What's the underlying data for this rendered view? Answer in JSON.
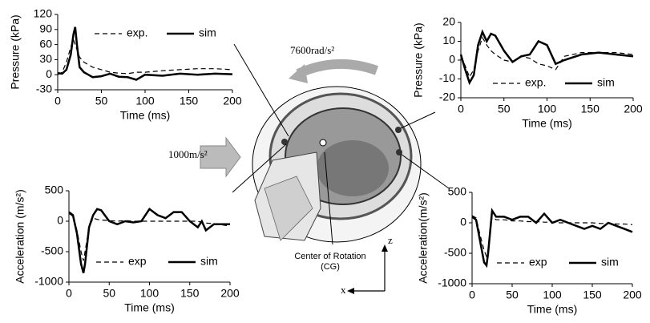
{
  "chart_data": [
    {
      "type": "line",
      "x_label": "Time (ms)",
      "y_label": "Pressure (kPa)",
      "xlim": [
        0,
        200
      ],
      "xticks": [
        0,
        50,
        100,
        150,
        200
      ],
      "ylim": [
        -30,
        120
      ],
      "yticks": [
        -30,
        0,
        30,
        60,
        90,
        120
      ],
      "legend": "top",
      "x": [
        0,
        5,
        10,
        15,
        18,
        20,
        22,
        25,
        30,
        35,
        40,
        50,
        60,
        70,
        80,
        90,
        100,
        120,
        140,
        160,
        180,
        200
      ],
      "series": [
        {
          "name": "exp.",
          "color": "#000000",
          "line_style": "dashed",
          "values": [
            0,
            5,
            25,
            55,
            70,
            60,
            50,
            35,
            25,
            20,
            15,
            10,
            5,
            3,
            2,
            5,
            5,
            8,
            10,
            12,
            12,
            10
          ]
        },
        {
          "name": "sim",
          "color": "#000000",
          "line_style": "solid",
          "values": [
            3,
            2,
            10,
            40,
            80,
            95,
            60,
            15,
            5,
            0,
            -5,
            -3,
            2,
            -4,
            -5,
            -10,
            0,
            -2,
            2,
            0,
            2,
            1
          ]
        }
      ]
    },
    {
      "type": "line",
      "x_label": "Time (ms)",
      "y_label": "Pressure (kPa)",
      "xlim": [
        0,
        200
      ],
      "xticks": [
        0,
        50,
        100,
        150,
        200
      ],
      "ylim": [
        -20,
        20
      ],
      "yticks": [
        -20,
        -10,
        0,
        10,
        20
      ],
      "legend": "bottom",
      "x": [
        0,
        5,
        10,
        15,
        20,
        25,
        30,
        35,
        40,
        50,
        60,
        70,
        80,
        90,
        100,
        110,
        120,
        140,
        160,
        180,
        200
      ],
      "series": [
        {
          "name": "exp.",
          "color": "#000000",
          "line_style": "dashed",
          "values": [
            2,
            -3,
            -9,
            -5,
            5,
            12,
            8,
            5,
            3,
            0,
            -1,
            2,
            1,
            -2,
            -3,
            -5,
            2,
            4,
            4,
            4,
            3
          ]
        },
        {
          "name": "sim",
          "color": "#000000",
          "line_style": "solid",
          "values": [
            3,
            -5,
            -12,
            -8,
            8,
            15,
            10,
            14,
            13,
            5,
            -1,
            2,
            3,
            10,
            8,
            -2,
            0,
            3,
            4,
            3,
            2
          ]
        }
      ]
    },
    {
      "type": "line",
      "x_label": "Time (ms)",
      "y_label": "Acceleration (m/s²)",
      "xlim": [
        0,
        200
      ],
      "xticks": [
        0,
        50,
        100,
        150,
        200
      ],
      "ylim": [
        -1000,
        500
      ],
      "yticks": [
        -1000,
        -500,
        0,
        500
      ],
      "legend": "bottom",
      "x": [
        0,
        5,
        10,
        15,
        18,
        20,
        25,
        30,
        35,
        40,
        50,
        60,
        70,
        80,
        90,
        100,
        110,
        120,
        130,
        140,
        150,
        160,
        165,
        170,
        180,
        200
      ],
      "series": [
        {
          "name": "exp",
          "color": "#000000",
          "line_style": "dashed",
          "values": [
            130,
            80,
            -150,
            -500,
            -650,
            -500,
            -100,
            50,
            30,
            20,
            10,
            0,
            10,
            0,
            0,
            0,
            0,
            0,
            0,
            0,
            0,
            0,
            -20,
            -30,
            -40,
            -80
          ]
        },
        {
          "name": "sim",
          "color": "#000000",
          "line_style": "solid",
          "values": [
            150,
            100,
            -200,
            -700,
            -850,
            -700,
            -100,
            100,
            200,
            180,
            0,
            -50,
            0,
            -20,
            0,
            200,
            100,
            50,
            150,
            150,
            0,
            -100,
            0,
            -150,
            -50,
            -50
          ]
        }
      ]
    },
    {
      "type": "line",
      "x_label": "Time (ms)",
      "y_label": "Acceleration(m/s²)",
      "xlim": [
        0,
        200
      ],
      "xticks": [
        0,
        50,
        100,
        150,
        200
      ],
      "ylim": [
        -1000,
        500
      ],
      "yticks": [
        -1000,
        -500,
        0,
        500
      ],
      "legend": "bottom",
      "x": [
        0,
        5,
        10,
        15,
        18,
        20,
        25,
        30,
        40,
        50,
        60,
        70,
        80,
        90,
        100,
        110,
        120,
        130,
        140,
        150,
        160,
        170,
        180,
        190,
        200
      ],
      "series": [
        {
          "name": "exp",
          "color": "#000000",
          "line_style": "dashed",
          "values": [
            120,
            80,
            -200,
            -450,
            -550,
            -450,
            100,
            50,
            50,
            30,
            30,
            20,
            20,
            10,
            10,
            0,
            0,
            0,
            0,
            0,
            -10,
            -10,
            -20,
            -20,
            -30
          ]
        },
        {
          "name": "sim",
          "color": "#000000",
          "line_style": "solid",
          "values": [
            100,
            50,
            -300,
            -650,
            -700,
            -500,
            200,
            100,
            100,
            50,
            100,
            100,
            0,
            150,
            0,
            50,
            0,
            -50,
            -100,
            -50,
            -100,
            0,
            -50,
            -100,
            -150
          ]
        }
      ]
    }
  ],
  "figure": {
    "angular_acceleration": "7600rad/s²",
    "linear_acceleration": "1000m/s²",
    "center_label": "Center of Rotation",
    "center_abbrev": "(CG)",
    "axis_z": "z",
    "axis_x": "x"
  }
}
